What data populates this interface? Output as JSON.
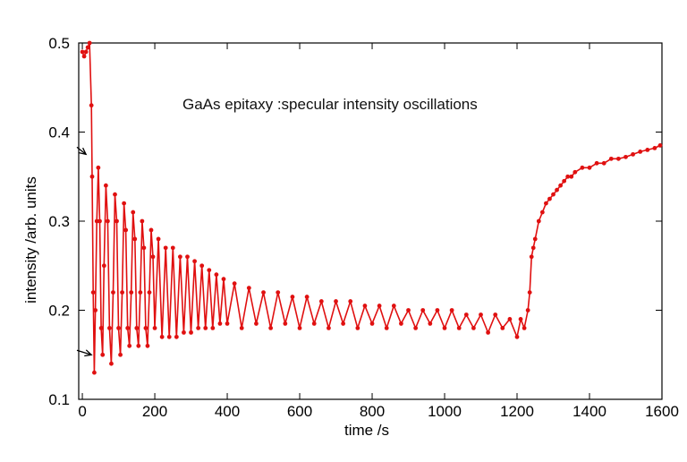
{
  "chart_data": {
    "type": "line",
    "title": "",
    "annotation": "GaAs epitaxy :specular intensity oscillations",
    "xlabel": "time /s",
    "ylabel": "intensity /arb. units",
    "xlim": [
      -10,
      1600
    ],
    "ylim": [
      0.1,
      0.5
    ],
    "x_ticks": [
      0,
      200,
      400,
      600,
      800,
      1000,
      1200,
      1400,
      1600
    ],
    "y_ticks": [
      0.1,
      0.2,
      0.3,
      0.4,
      0.5
    ],
    "grid": false,
    "legend": "none",
    "series_color": "#e01010",
    "arrow_color": "#000000",
    "series": [
      {
        "x": [
          0,
          5,
          10,
          15,
          20,
          25,
          27,
          30,
          33,
          36,
          40,
          44,
          48,
          52,
          56,
          60,
          65,
          70,
          75,
          80,
          85,
          90,
          95,
          100,
          105,
          110,
          115,
          120,
          125,
          130,
          135,
          140,
          145,
          150,
          155,
          160,
          165,
          170,
          175,
          180,
          185,
          190,
          195,
          200,
          210,
          220,
          230,
          240,
          250,
          260,
          270,
          280,
          290,
          300,
          310,
          320,
          330,
          340,
          350,
          360,
          370,
          380,
          390,
          400,
          420,
          440,
          460,
          480,
          500,
          520,
          540,
          560,
          580,
          600,
          620,
          640,
          660,
          680,
          700,
          720,
          740,
          760,
          780,
          800,
          820,
          840,
          860,
          880,
          900,
          920,
          940,
          960,
          980,
          1000,
          1020,
          1040,
          1060,
          1080,
          1100,
          1120,
          1140,
          1160,
          1180,
          1200,
          1210,
          1220,
          1230,
          1235,
          1240,
          1245,
          1250,
          1260,
          1270,
          1280,
          1290,
          1300,
          1310,
          1320,
          1330,
          1340,
          1350,
          1360,
          1380,
          1400,
          1420,
          1440,
          1460,
          1480,
          1500,
          1520,
          1540,
          1560,
          1580,
          1595
        ],
        "y": [
          0.49,
          0.485,
          0.49,
          0.495,
          0.5,
          0.43,
          0.35,
          0.22,
          0.13,
          0.2,
          0.3,
          0.36,
          0.3,
          0.18,
          0.15,
          0.25,
          0.34,
          0.3,
          0.18,
          0.14,
          0.22,
          0.33,
          0.3,
          0.18,
          0.15,
          0.22,
          0.32,
          0.29,
          0.18,
          0.16,
          0.22,
          0.31,
          0.28,
          0.18,
          0.16,
          0.22,
          0.3,
          0.27,
          0.18,
          0.16,
          0.22,
          0.29,
          0.26,
          0.18,
          0.28,
          0.17,
          0.27,
          0.17,
          0.27,
          0.17,
          0.26,
          0.175,
          0.26,
          0.175,
          0.255,
          0.18,
          0.25,
          0.18,
          0.245,
          0.18,
          0.24,
          0.185,
          0.235,
          0.185,
          0.23,
          0.18,
          0.225,
          0.185,
          0.22,
          0.18,
          0.22,
          0.185,
          0.215,
          0.18,
          0.215,
          0.185,
          0.21,
          0.18,
          0.21,
          0.185,
          0.21,
          0.18,
          0.205,
          0.185,
          0.205,
          0.18,
          0.205,
          0.185,
          0.2,
          0.18,
          0.2,
          0.185,
          0.2,
          0.18,
          0.2,
          0.18,
          0.195,
          0.18,
          0.195,
          0.175,
          0.195,
          0.18,
          0.19,
          0.17,
          0.19,
          0.18,
          0.2,
          0.22,
          0.26,
          0.27,
          0.28,
          0.3,
          0.31,
          0.32,
          0.325,
          0.33,
          0.335,
          0.34,
          0.345,
          0.35,
          0.35,
          0.355,
          0.36,
          0.36,
          0.365,
          0.365,
          0.37,
          0.37,
          0.372,
          0.375,
          0.378,
          0.38,
          0.382,
          0.385
        ]
      }
    ],
    "arrows": [
      {
        "from": [
          -15,
          0.383
        ],
        "to": [
          10,
          0.375
        ]
      },
      {
        "from": [
          -15,
          0.155
        ],
        "to": [
          25,
          0.15
        ]
      }
    ]
  }
}
